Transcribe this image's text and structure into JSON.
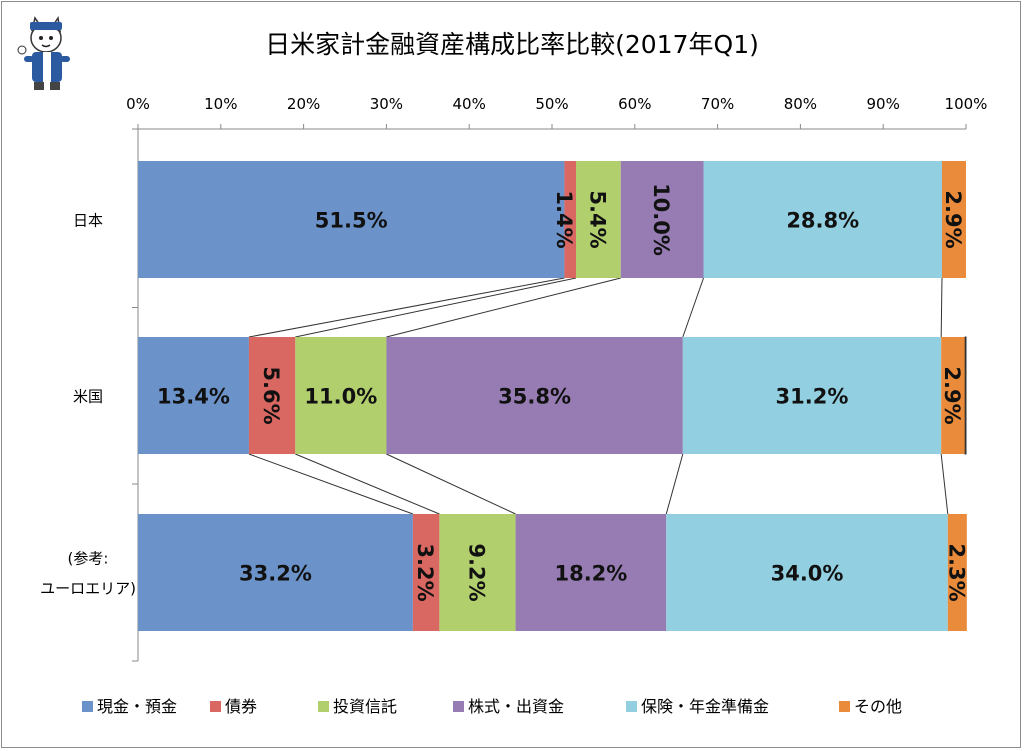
{
  "chart_data": {
    "type": "bar",
    "orientation": "horizontal-stacked-100",
    "title": "日米家計金融資産構成比率比較(2017年Q1)",
    "xlim": [
      0,
      100
    ],
    "x_ticks": [
      "0%",
      "10%",
      "20%",
      "30%",
      "40%",
      "50%",
      "60%",
      "70%",
      "80%",
      "90%",
      "100%"
    ],
    "categories": [
      {
        "label": "日本",
        "lines": [
          "日本"
        ]
      },
      {
        "label": "米国",
        "lines": [
          "米国"
        ]
      },
      {
        "label": "(参考:ユーロエリア)",
        "lines": [
          "(参考:",
          "ユーロエリア)"
        ]
      }
    ],
    "legend_position": "bottom",
    "grid": false,
    "series": [
      {
        "name": "現金・預金",
        "color": "#6b93c9",
        "values": [
          51.5,
          13.4,
          33.2
        ],
        "labels": [
          "51.5%",
          "13.4%",
          "33.2%"
        ],
        "label_rotate": [
          false,
          false,
          false
        ]
      },
      {
        "name": "債券",
        "color": "#d96762",
        "values": [
          1.4,
          5.6,
          3.2
        ],
        "labels": [
          "1.4%",
          "5.6%",
          "3.2%"
        ],
        "label_rotate": [
          true,
          true,
          true
        ]
      },
      {
        "name": "投資信託",
        "color": "#b2cf6e",
        "values": [
          5.4,
          11.0,
          9.2
        ],
        "labels": [
          "5.4%",
          "11.0%",
          "9.2%"
        ],
        "label_rotate": [
          true,
          false,
          true
        ]
      },
      {
        "name": "株式・出資金",
        "color": "#967cb3",
        "values": [
          10.0,
          35.8,
          18.2
        ],
        "labels": [
          "10.0%",
          "35.8%",
          "18.2%"
        ],
        "label_rotate": [
          true,
          false,
          false
        ]
      },
      {
        "name": "保険・年金準備金",
        "color": "#92cfe0",
        "values": [
          28.8,
          31.2,
          34.0
        ],
        "labels": [
          "28.8%",
          "31.2%",
          "34.0%"
        ],
        "label_rotate": [
          false,
          false,
          false
        ]
      },
      {
        "name": "その他",
        "color": "#e98b3a",
        "values": [
          2.9,
          2.9,
          2.3
        ],
        "labels": [
          "2.9%",
          "2.9%",
          "2.3%"
        ],
        "label_rotate": [
          true,
          true,
          true
        ]
      }
    ]
  }
}
